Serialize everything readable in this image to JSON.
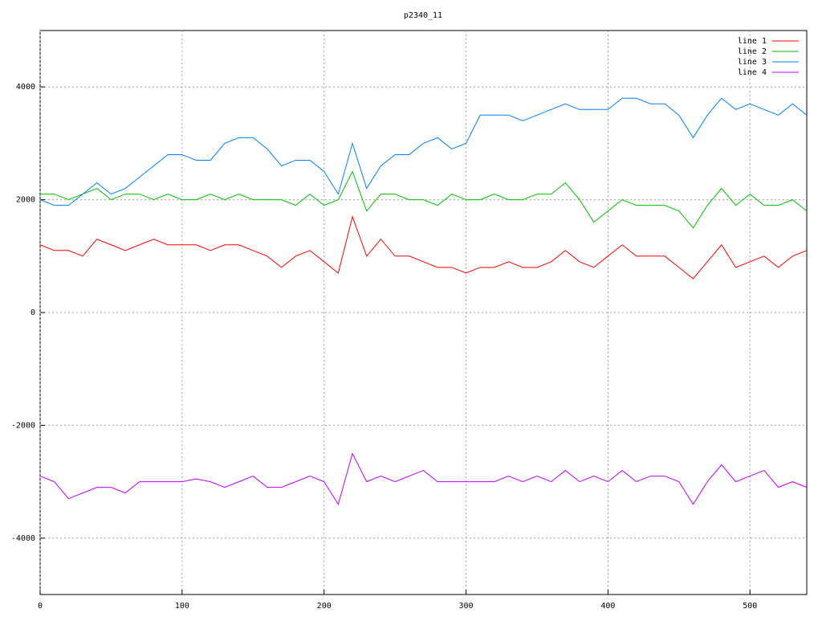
{
  "chart_data": {
    "type": "line",
    "title": "p2340_11",
    "x": [
      0,
      10,
      20,
      30,
      40,
      50,
      60,
      70,
      80,
      90,
      100,
      110,
      120,
      130,
      140,
      150,
      160,
      170,
      180,
      190,
      200,
      210,
      220,
      230,
      240,
      250,
      260,
      270,
      280,
      290,
      300,
      310,
      320,
      330,
      340,
      350,
      360,
      370,
      380,
      390,
      400,
      410,
      420,
      430,
      440,
      450,
      460,
      470,
      480,
      490,
      500,
      510,
      520,
      530,
      540
    ],
    "series": [
      {
        "name": "line 1",
        "color": "#ff0000",
        "values": [
          1200,
          1100,
          1100,
          1000,
          1300,
          1200,
          1100,
          1200,
          1300,
          1200,
          1200,
          1200,
          1100,
          1200,
          1200,
          1100,
          1000,
          800,
          1000,
          1100,
          900,
          700,
          1700,
          1000,
          1300,
          1000,
          1000,
          900,
          800,
          800,
          700,
          800,
          800,
          900,
          800,
          800,
          900,
          1100,
          900,
          800,
          1000,
          1200,
          1000,
          1000,
          1000,
          800,
          600,
          900,
          1200,
          800,
          900,
          1000,
          800,
          1000,
          1100
        ]
      },
      {
        "name": "line 2",
        "color": "#00c000",
        "values": [
          2100,
          2100,
          2000,
          2100,
          2200,
          2000,
          2100,
          2100,
          2000,
          2100,
          2000,
          2000,
          2100,
          2000,
          2100,
          2000,
          2000,
          2000,
          1900,
          2100,
          1900,
          2000,
          2500,
          1800,
          2100,
          2100,
          2000,
          2000,
          1900,
          2100,
          2000,
          2000,
          2100,
          2000,
          2000,
          2100,
          2100,
          2300,
          2000,
          1600,
          1800,
          2000,
          1900,
          1900,
          1900,
          1800,
          1500,
          1900,
          2200,
          1900,
          2100,
          1900,
          1900,
          2000,
          1800
        ]
      },
      {
        "name": "line 3",
        "color": "#0080ff",
        "values": [
          2000,
          1900,
          1900,
          2100,
          2300,
          2100,
          2200,
          2400,
          2600,
          2800,
          2800,
          2700,
          2700,
          3000,
          3100,
          3100,
          2900,
          2600,
          2700,
          2700,
          2500,
          2100,
          3000,
          2200,
          2600,
          2800,
          2800,
          3000,
          3100,
          2900,
          3000,
          3500,
          3500,
          3500,
          3400,
          3500,
          3600,
          3700,
          3600,
          3600,
          3600,
          3800,
          3800,
          3700,
          3700,
          3500,
          3100,
          3500,
          3800,
          3600,
          3700,
          3600,
          3500,
          3700,
          3500
        ]
      },
      {
        "name": "line 4",
        "color": "#c000ff",
        "values": [
          -2900,
          -3000,
          -3300,
          -3200,
          -3100,
          -3100,
          -3200,
          -3000,
          -3000,
          -3000,
          -3000,
          -2950,
          -3000,
          -3100,
          -3000,
          -2900,
          -3100,
          -3100,
          -3000,
          -2900,
          -3000,
          -3400,
          -2500,
          -3000,
          -2900,
          -3000,
          -2900,
          -2800,
          -3000,
          -3000,
          -3000,
          -3000,
          -3000,
          -2900,
          -3000,
          -2900,
          -3000,
          -2800,
          -3000,
          -2900,
          -3000,
          -2800,
          -3000,
          -2900,
          -2900,
          -3000,
          -3400,
          -3000,
          -2700,
          -3000,
          -2900,
          -2800,
          -3100,
          -3000,
          -3100
        ]
      }
    ],
    "xlim": [
      0,
      540
    ],
    "ylim": [
      -5000,
      5000
    ],
    "xticks": [
      0,
      100,
      200,
      300,
      400,
      500
    ],
    "yticks": [
      -4000,
      -2000,
      0,
      2000,
      4000
    ],
    "grid": true,
    "legend": "top-right"
  }
}
